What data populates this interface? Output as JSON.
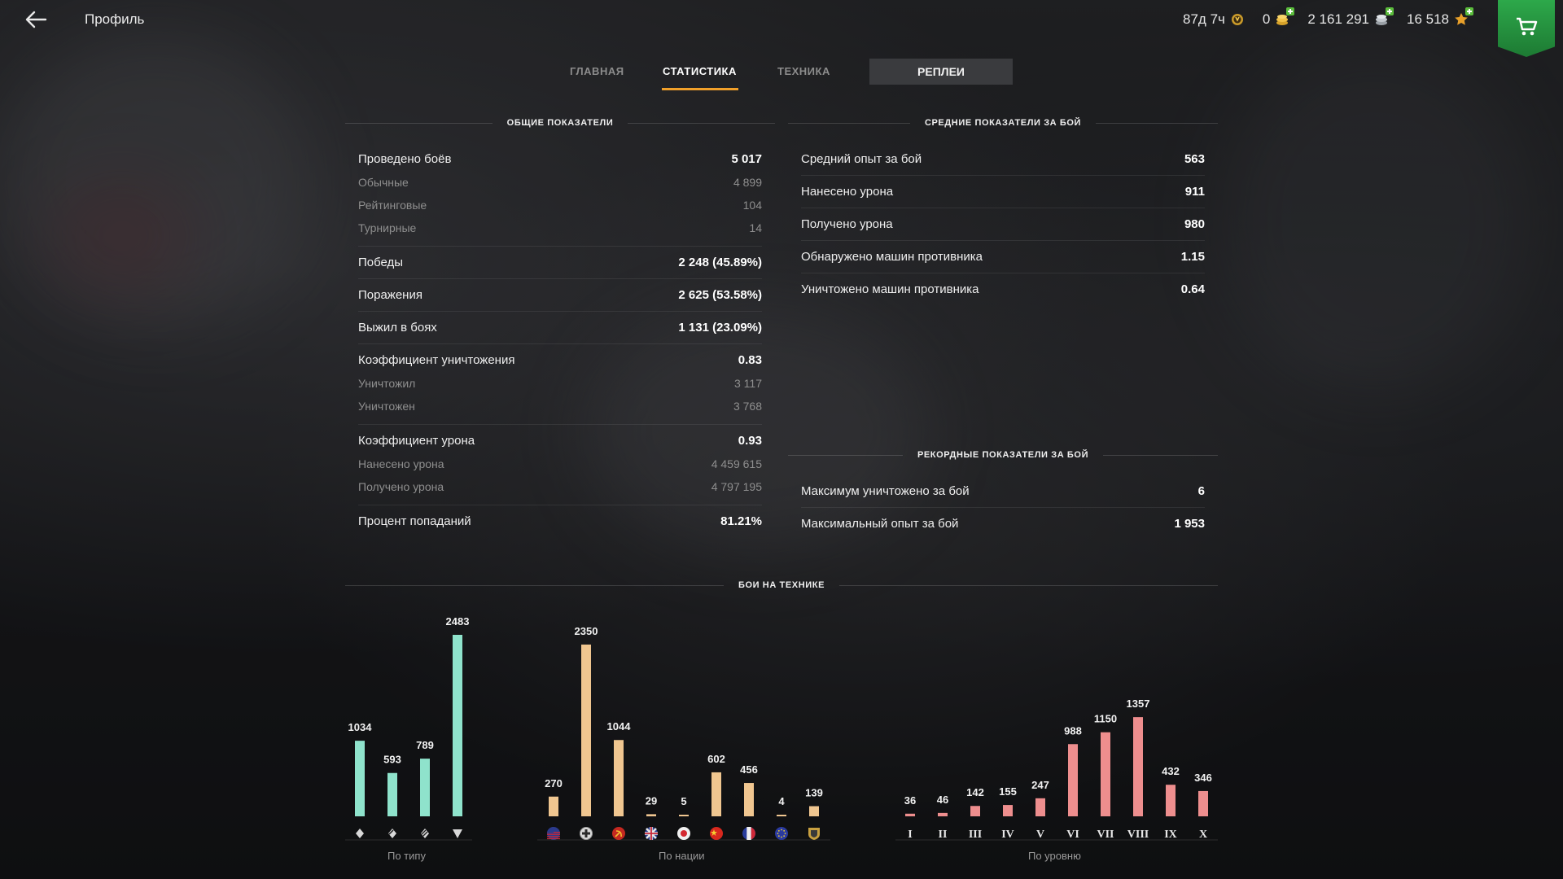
{
  "header": {
    "title": "Профиль",
    "currencies": [
      {
        "name": "premium-time",
        "value": "87д 7ч",
        "icon": "premium-time-icon",
        "has_plus": false
      },
      {
        "name": "gold",
        "value": "0",
        "icon": "gold-icon",
        "has_plus": true
      },
      {
        "name": "credits",
        "value": "2 161 291",
        "icon": "credits-icon",
        "has_plus": true
      },
      {
        "name": "free-xp",
        "value": "16 518",
        "icon": "free-xp-icon",
        "has_plus": true
      }
    ]
  },
  "tabs": {
    "main": "ГЛАВНАЯ",
    "stats": "СТАТИСТИКА",
    "vehicles": "ТЕХНИКА",
    "replays": "РЕПЛЕИ",
    "active": "stats"
  },
  "general": {
    "title": "ОБЩИЕ ПОКАЗАТЕЛИ",
    "rows": [
      {
        "label": "Проведено боёв",
        "value": "5 017",
        "sub": false
      },
      {
        "label": "Обычные",
        "value": "4 899",
        "sub": true
      },
      {
        "label": "Рейтинговые",
        "value": "104",
        "sub": true
      },
      {
        "label": "Турнирные",
        "value": "14",
        "sub": true
      },
      {
        "label": "Победы",
        "value": "2 248 (45.89%)",
        "sub": false
      },
      {
        "label": "Поражения",
        "value": "2 625 (53.58%)",
        "sub": false
      },
      {
        "label": "Выжил в боях",
        "value": "1 131 (23.09%)",
        "sub": false
      },
      {
        "label": "Коэффициент уничтожения",
        "value": "0.83",
        "sub": false
      },
      {
        "label": "Уничтожил",
        "value": "3 117",
        "sub": true
      },
      {
        "label": "Уничтожен",
        "value": "3 768",
        "sub": true
      },
      {
        "label": "Коэффициент урона",
        "value": "0.93",
        "sub": false
      },
      {
        "label": "Нанесено урона",
        "value": "4 459 615",
        "sub": true
      },
      {
        "label": "Получено урона",
        "value": "4 797 195",
        "sub": true
      },
      {
        "label": "Процент попаданий",
        "value": "81.21%",
        "sub": false
      }
    ]
  },
  "average": {
    "title": "СРЕДНИЕ ПОКАЗАТЕЛИ ЗА БОЙ",
    "rows": [
      {
        "label": "Средний опыт за бой",
        "value": "563"
      },
      {
        "label": "Нанесено урона",
        "value": "911"
      },
      {
        "label": "Получено урона",
        "value": "980"
      },
      {
        "label": "Обнаружено машин противника",
        "value": "1.15"
      },
      {
        "label": "Уничтожено машин противника",
        "value": "0.64"
      }
    ]
  },
  "records": {
    "title": "РЕКОРДНЫЕ ПОКАЗАТЕЛИ ЗА БОЙ",
    "rows": [
      {
        "label": "Максимум уничтожено за бой",
        "value": "6"
      },
      {
        "label": "Максимальный опыт за бой",
        "value": "1 953"
      }
    ]
  },
  "battles_section_title": "БОИ НА ТЕХНИКЕ",
  "colors": {
    "type_bars": "#8fe3cc",
    "nation_bars": "#f0c690",
    "tier_bars": "#ee8e8e",
    "tab_accent": "#f0a02a",
    "shop_green": "#2da84a"
  },
  "chart_data": [
    {
      "type": "bar",
      "title": "По типу",
      "categories": [
        "light-tank-icon",
        "medium-tank-icon",
        "heavy-tank-icon",
        "tank-destroyer-icon"
      ],
      "values": [
        1034,
        593,
        789,
        2483
      ]
    },
    {
      "type": "bar",
      "title": "По нации",
      "categories": [
        "usa-flag-icon",
        "germany-flag-icon",
        "ussr-flag-icon",
        "uk-flag-icon",
        "japan-flag-icon",
        "china-flag-icon",
        "france-flag-icon",
        "european-flag-icon",
        "other-nation-icon"
      ],
      "values": [
        270,
        2350,
        1044,
        29,
        5,
        602,
        456,
        4,
        139
      ]
    },
    {
      "type": "bar",
      "title": "По уровню",
      "categories": [
        "I",
        "II",
        "III",
        "IV",
        "V",
        "VI",
        "VII",
        "VIII",
        "IX",
        "X"
      ],
      "values": [
        36,
        46,
        142,
        155,
        247,
        988,
        1150,
        1357,
        432,
        346
      ]
    }
  ]
}
